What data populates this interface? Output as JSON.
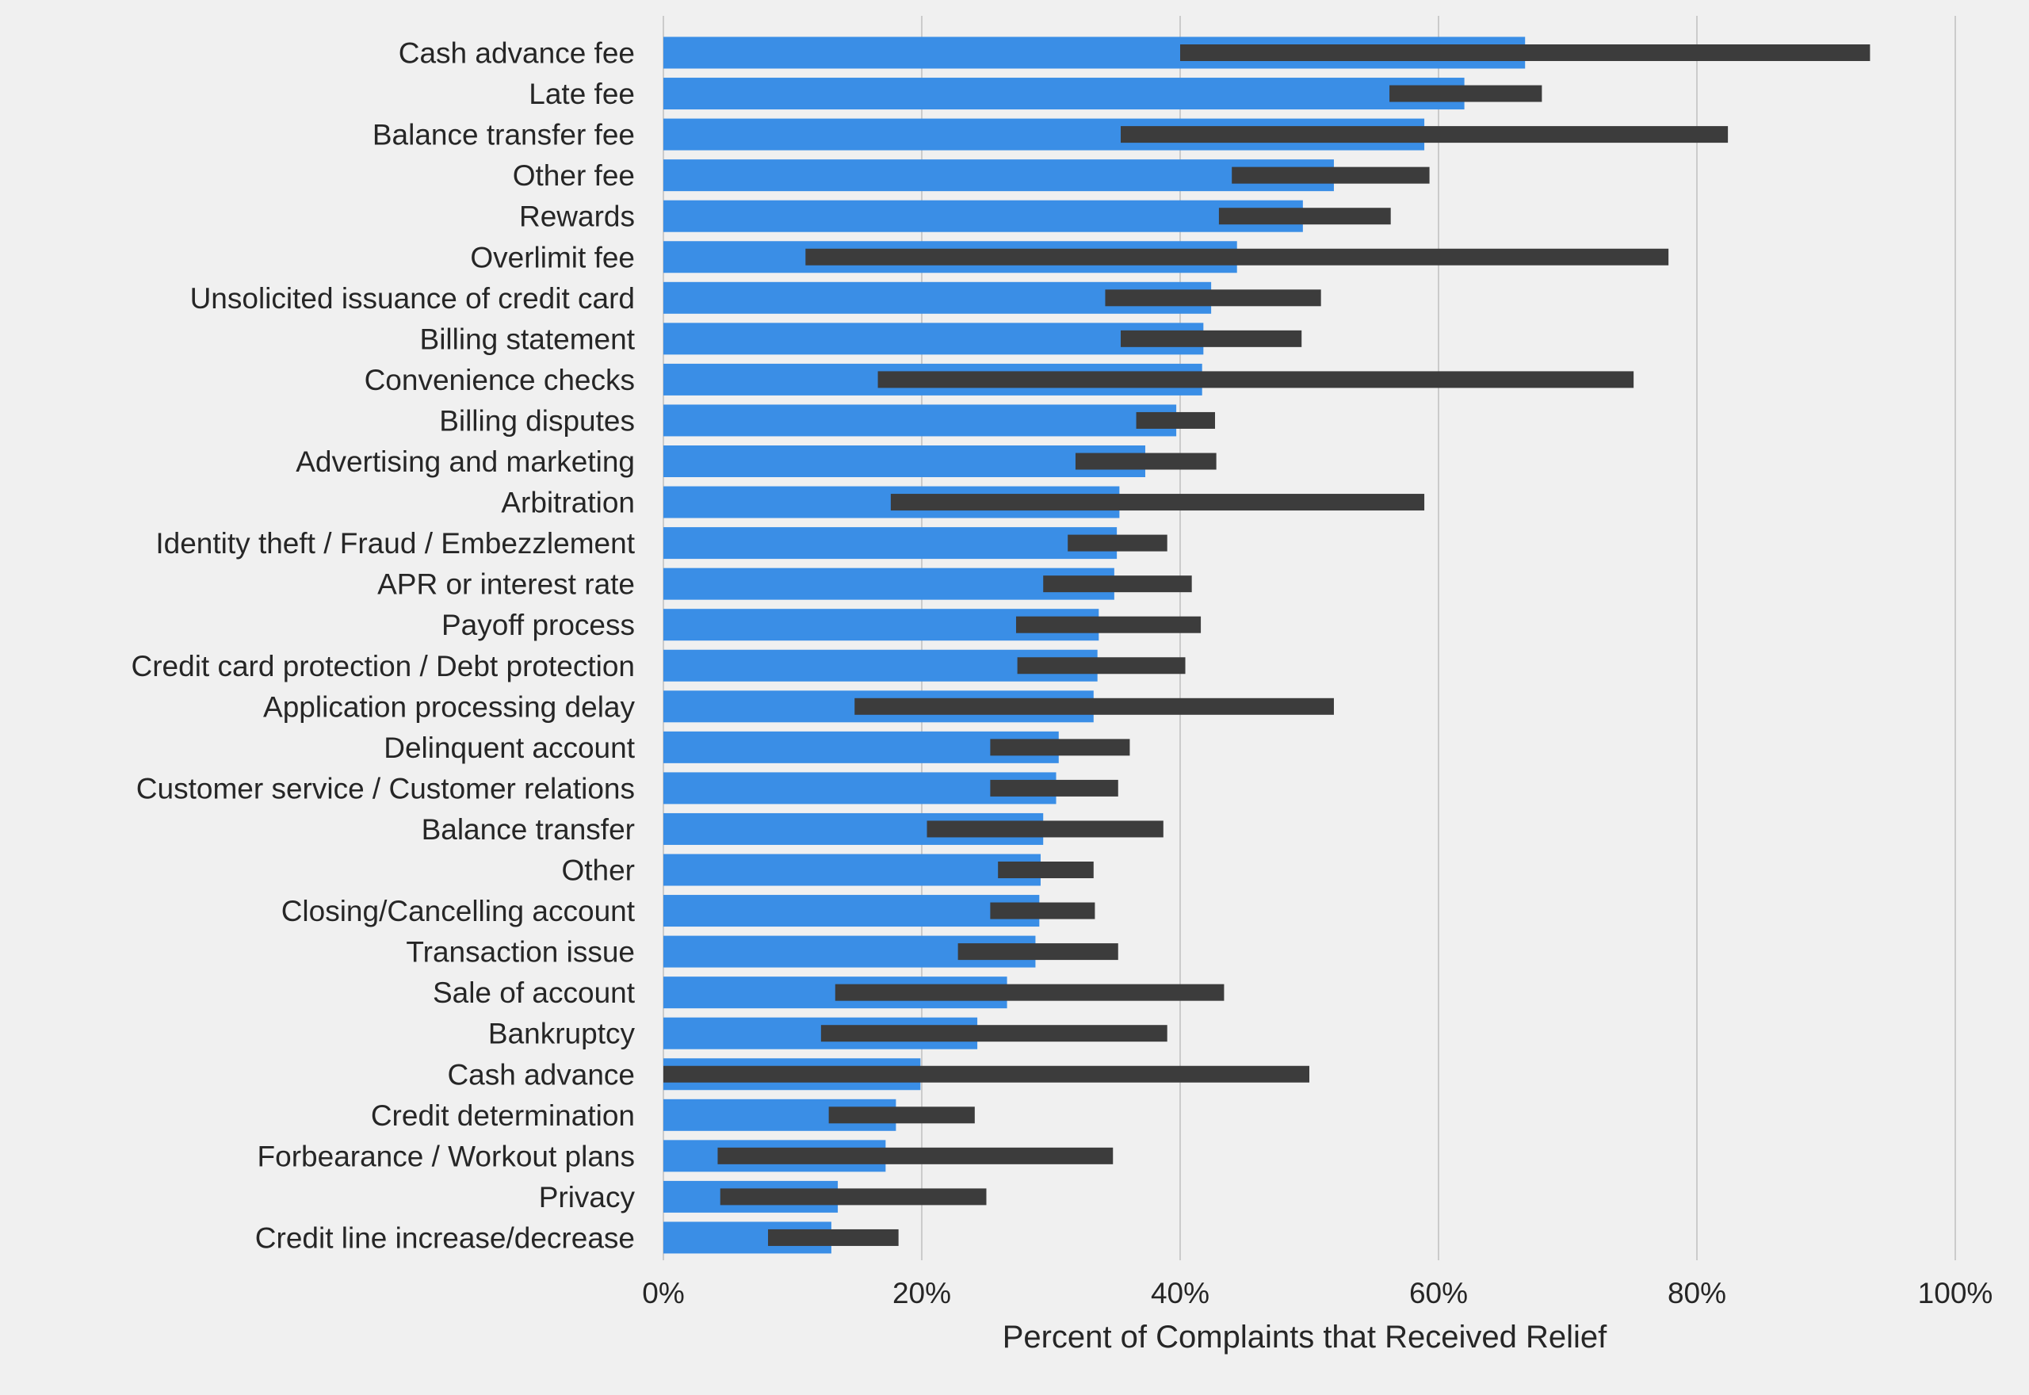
{
  "chart_data": {
    "type": "bar",
    "orientation": "horizontal",
    "xlabel": "Percent of Complaints that Received Relief",
    "ylabel": "",
    "xlim": [
      0,
      100
    ],
    "x_ticks": [
      "0%",
      "20%",
      "40%",
      "60%",
      "80%",
      "100%"
    ],
    "grid": "vertical lines on",
    "categories": [
      "Cash advance fee",
      "Late fee",
      "Balance transfer fee",
      "Other fee",
      "Rewards",
      "Overlimit fee",
      "Unsolicited issuance of credit card",
      "Billing statement",
      "Convenience checks",
      "Billing disputes",
      "Advertising and marketing",
      "Arbitration",
      "Identity theft / Fraud / Embezzlement",
      "APR or interest rate",
      "Payoff process",
      "Credit card protection / Debt protection",
      "Application processing delay",
      "Delinquent account",
      "Customer service / Customer relations",
      "Balance transfer",
      "Other",
      "Closing/Cancelling account",
      "Transaction issue",
      "Sale of account",
      "Bankruptcy",
      "Cash advance",
      "Credit determination",
      "Forbearance / Workout plans",
      "Privacy",
      "Credit line increase/decrease"
    ],
    "values": [
      66.7,
      62.0,
      58.9,
      51.9,
      49.5,
      44.4,
      42.4,
      41.8,
      41.7,
      39.7,
      37.3,
      35.3,
      35.1,
      34.9,
      33.7,
      33.6,
      33.3,
      30.6,
      30.4,
      29.4,
      29.2,
      29.1,
      28.8,
      26.6,
      24.3,
      19.9,
      18.0,
      17.2,
      13.5,
      13.0
    ],
    "error_ranges": [
      [
        40.0,
        93.4
      ],
      [
        56.2,
        68.0
      ],
      [
        35.4,
        82.4
      ],
      [
        44.0,
        59.3
      ],
      [
        43.0,
        56.3
      ],
      [
        11.0,
        77.8
      ],
      [
        34.2,
        50.9
      ],
      [
        35.4,
        49.4
      ],
      [
        16.6,
        75.1
      ],
      [
        36.6,
        42.7
      ],
      [
        31.9,
        42.8
      ],
      [
        17.6,
        58.9
      ],
      [
        31.3,
        39.0
      ],
      [
        29.4,
        40.9
      ],
      [
        27.3,
        41.6
      ],
      [
        27.4,
        40.4
      ],
      [
        14.8,
        51.9
      ],
      [
        25.3,
        36.1
      ],
      [
        25.3,
        35.2
      ],
      [
        20.4,
        38.7
      ],
      [
        25.9,
        33.3
      ],
      [
        25.3,
        33.4
      ],
      [
        22.8,
        35.2
      ],
      [
        13.3,
        43.4
      ],
      [
        12.2,
        39.0
      ],
      [
        0.0,
        50.0
      ],
      [
        12.8,
        24.1
      ],
      [
        4.2,
        34.8
      ],
      [
        4.4,
        25.0
      ],
      [
        8.1,
        18.2
      ]
    ],
    "colors": {
      "bar": "#3a8ee6",
      "error": "#3c3c3c",
      "grid": "#cbcbcb",
      "background": "#f0f0f0"
    }
  }
}
